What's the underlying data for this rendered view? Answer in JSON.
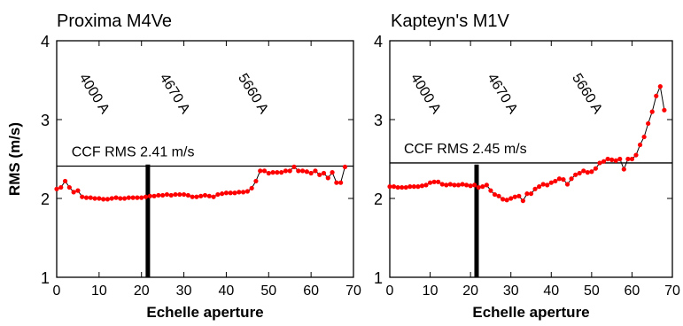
{
  "chart_data": [
    {
      "type": "line",
      "title": "Proxima M4Ve",
      "xlabel": "Echelle aperture",
      "ylabel": "RMS (m/s)",
      "xlim": [
        0,
        70
      ],
      "ylim": [
        1,
        4
      ],
      "xticks": [
        "0",
        "10",
        "20",
        "30",
        "40",
        "50",
        "60",
        "70"
      ],
      "yticks": [
        "1",
        "2",
        "3",
        "4"
      ],
      "grid": false,
      "reference_line": {
        "y": 2.41,
        "label": "CCF RMS 2.41 m/s"
      },
      "marker_line": {
        "x": 21.5
      },
      "wavelength_labels": [
        {
          "text": "4000 A",
          "x": 8
        },
        {
          "text": "4670 A",
          "x": 27
        },
        {
          "text": "5660 A",
          "x": 45.5
        }
      ],
      "series": [
        {
          "color": "#ff0000",
          "x": [
            0,
            1,
            2,
            3,
            4,
            5,
            6,
            7,
            8,
            9,
            10,
            11,
            12,
            13,
            14,
            15,
            16,
            17,
            18,
            19,
            20,
            21,
            22,
            23,
            24,
            25,
            26,
            27,
            28,
            29,
            30,
            31,
            32,
            33,
            34,
            35,
            36,
            37,
            38,
            39,
            40,
            41,
            42,
            43,
            44,
            45,
            46,
            47,
            48,
            49,
            50,
            51,
            52,
            53,
            54,
            55,
            56,
            57,
            58,
            59,
            60,
            61,
            62,
            63,
            64,
            65,
            66,
            67,
            68
          ],
          "y": [
            2.12,
            2.14,
            2.22,
            2.14,
            2.08,
            2.1,
            2.02,
            2.01,
            2.01,
            2.0,
            2.0,
            1.99,
            1.99,
            2.0,
            2.01,
            2.0,
            2.0,
            2.01,
            2.01,
            2.01,
            2.01,
            2.02,
            2.03,
            2.03,
            2.04,
            2.04,
            2.05,
            2.04,
            2.05,
            2.05,
            2.05,
            2.04,
            2.02,
            2.02,
            2.03,
            2.04,
            2.03,
            2.02,
            2.05,
            2.06,
            2.07,
            2.07,
            2.07,
            2.08,
            2.08,
            2.09,
            2.13,
            2.22,
            2.35,
            2.35,
            2.32,
            2.33,
            2.33,
            2.33,
            2.35,
            2.35,
            2.4,
            2.35,
            2.35,
            2.34,
            2.32,
            2.35,
            2.3,
            2.32,
            2.26,
            2.33,
            2.2,
            2.2,
            2.4
          ]
        }
      ]
    },
    {
      "type": "line",
      "title": "Kapteyn's  M1V",
      "xlabel": "Echelle aperture",
      "ylabel": "",
      "xlim": [
        0,
        70
      ],
      "ylim": [
        1,
        4
      ],
      "xticks": [
        "0",
        "10",
        "20",
        "30",
        "40",
        "50",
        "60",
        "70"
      ],
      "yticks": [
        "1",
        "2",
        "3",
        "4"
      ],
      "grid": false,
      "reference_line": {
        "y": 2.45,
        "label": "CCF RMS 2.45 m/s"
      },
      "marker_line": {
        "x": 21.5
      },
      "wavelength_labels": [
        {
          "text": "4000 A",
          "x": 8
        },
        {
          "text": "4670 A",
          "x": 27
        },
        {
          "text": "5660 A",
          "x": 48
        }
      ],
      "series": [
        {
          "color": "#ff0000",
          "x": [
            0,
            1,
            2,
            3,
            4,
            5,
            6,
            7,
            8,
            9,
            10,
            11,
            12,
            13,
            14,
            15,
            16,
            17,
            18,
            19,
            20,
            21,
            22,
            23,
            24,
            25,
            26,
            27,
            28,
            29,
            30,
            31,
            32,
            33,
            34,
            35,
            36,
            37,
            38,
            39,
            40,
            41,
            42,
            43,
            44,
            45,
            46,
            47,
            48,
            49,
            50,
            51,
            52,
            53,
            54,
            55,
            56,
            57,
            58,
            59,
            60,
            61,
            62,
            63,
            64,
            65,
            66,
            67,
            68
          ],
          "y": [
            2.15,
            2.15,
            2.14,
            2.14,
            2.14,
            2.15,
            2.15,
            2.15,
            2.16,
            2.17,
            2.2,
            2.21,
            2.21,
            2.18,
            2.17,
            2.18,
            2.17,
            2.17,
            2.18,
            2.17,
            2.16,
            2.17,
            2.14,
            2.15,
            2.17,
            2.1,
            2.05,
            2.03,
            1.99,
            1.98,
            2.0,
            2.02,
            2.03,
            1.97,
            2.06,
            2.06,
            2.12,
            2.15,
            2.18,
            2.17,
            2.2,
            2.22,
            2.25,
            2.24,
            2.18,
            2.25,
            2.3,
            2.32,
            2.35,
            2.33,
            2.34,
            2.38,
            2.45,
            2.47,
            2.5,
            2.49,
            2.48,
            2.5,
            2.37,
            2.5,
            2.5,
            2.55,
            2.68,
            2.78,
            2.95,
            3.1,
            3.3,
            3.42,
            3.12
          ]
        }
      ]
    }
  ]
}
